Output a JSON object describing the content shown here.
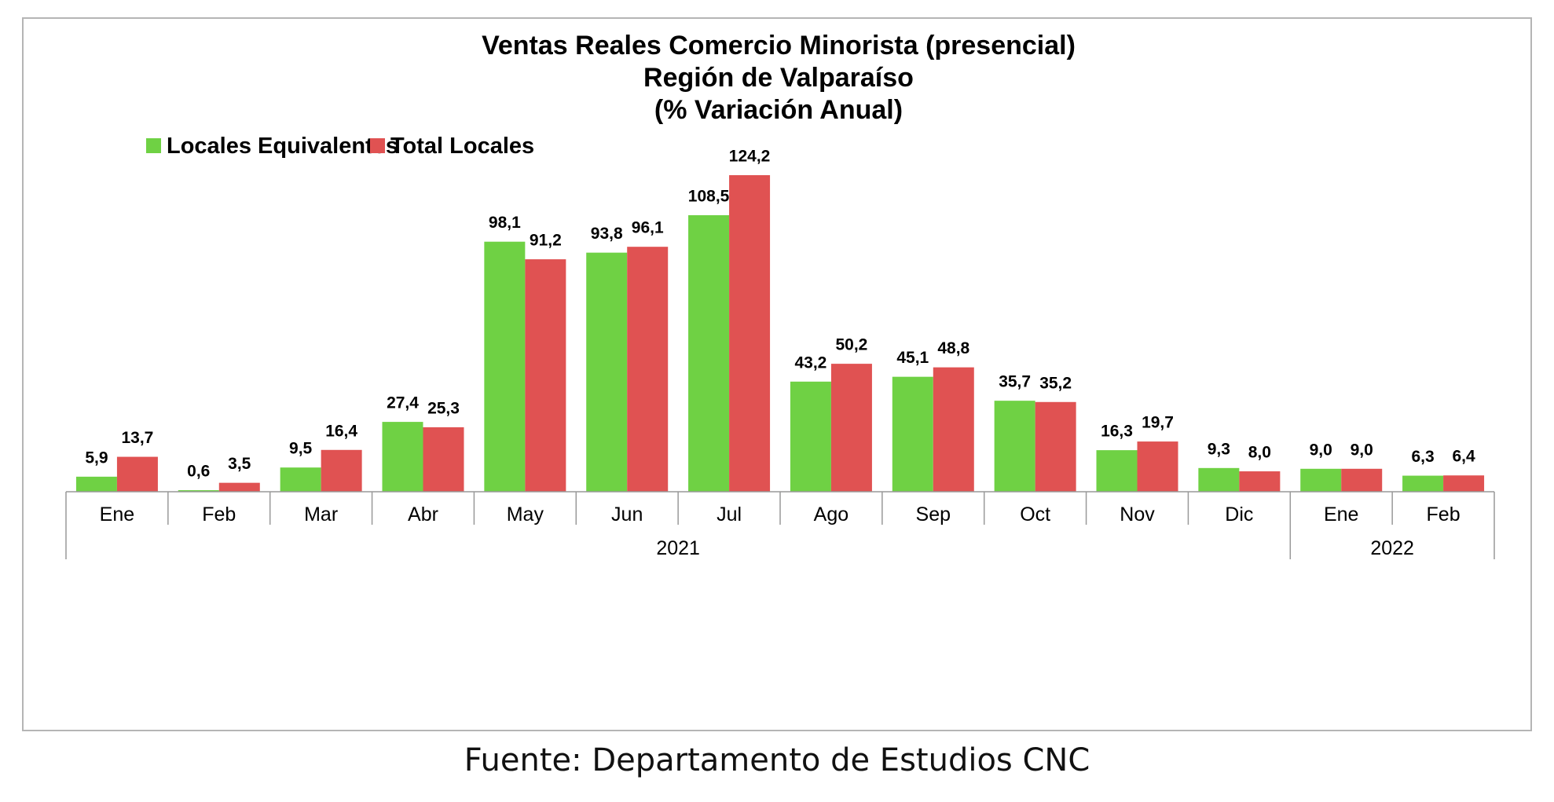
{
  "chart_data": {
    "type": "bar",
    "title": [
      "Ventas Reales Comercio Minorista (presencial)",
      "Región de Valparaíso",
      "(% Variación Anual)"
    ],
    "categories": [
      "Ene",
      "Feb",
      "Mar",
      "Abr",
      "May",
      "Jun",
      "Jul",
      "Ago",
      "Sep",
      "Oct",
      "Nov",
      "Dic",
      "Ene",
      "Feb"
    ],
    "groups": [
      {
        "label": "2021",
        "span": 12
      },
      {
        "label": "2022",
        "span": 2
      }
    ],
    "series": [
      {
        "name": "Locales Equivalentes",
        "color": "#6fd144",
        "values": [
          5.9,
          0.6,
          9.5,
          27.4,
          98.1,
          93.8,
          108.5,
          43.2,
          45.1,
          35.7,
          16.3,
          9.3,
          9.0,
          6.3
        ],
        "labels": [
          "5,9",
          "0,6",
          "9,5",
          "27,4",
          "98,1",
          "93,8",
          "108,5",
          "43,2",
          "45,1",
          "35,7",
          "16,3",
          "9,3",
          "9,0",
          "6,3"
        ]
      },
      {
        "name": "Total Locales",
        "color": "#e05252",
        "values": [
          13.7,
          3.5,
          16.4,
          25.3,
          91.2,
          96.1,
          124.2,
          50.2,
          48.8,
          35.2,
          19.7,
          8.0,
          9.0,
          6.4
        ],
        "labels": [
          "13,7",
          "3,5",
          "16,4",
          "25,3",
          "91,2",
          "96,1",
          "124,2",
          "50,2",
          "48,8",
          "35,2",
          "19,7",
          "8,0",
          "9,0",
          "6,4"
        ]
      }
    ],
    "legend_position": "top-left",
    "grid": false
  },
  "source": "Fuente: Departamento de Estudios CNC"
}
